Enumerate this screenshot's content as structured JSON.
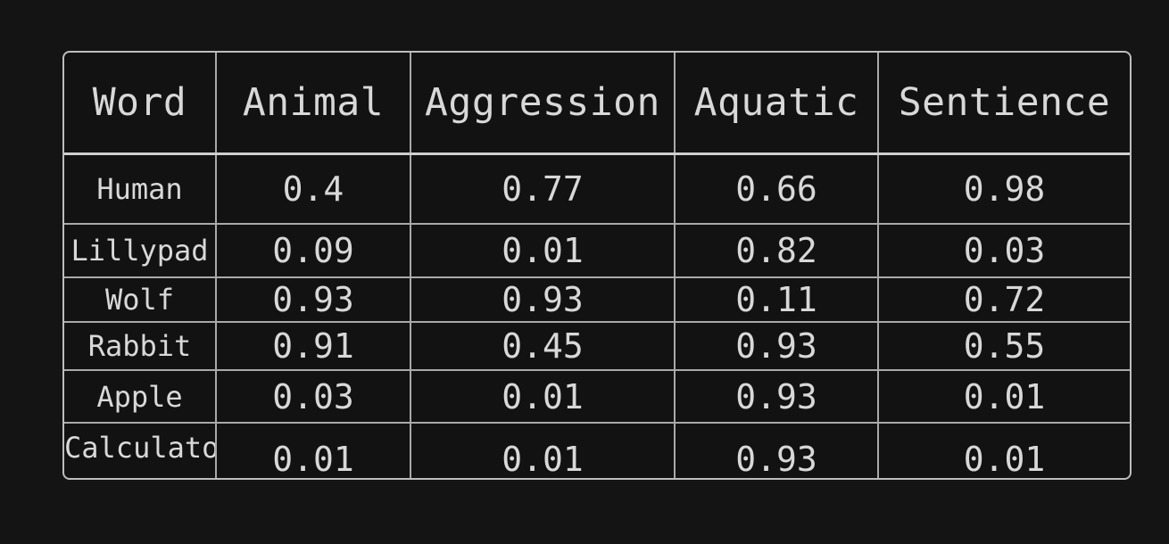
{
  "table": {
    "headers": [
      "Word",
      "Animal",
      "Aggression",
      "Aquatic",
      "Sentience"
    ],
    "rows": [
      [
        "Human",
        "0.4",
        "0.77",
        "0.66",
        "0.98"
      ],
      [
        "Lillypad",
        "0.09",
        "0.01",
        "0.82",
        "0.03"
      ],
      [
        "Wolf",
        "0.93",
        "0.93",
        "0.11",
        "0.72"
      ],
      [
        "Rabbit",
        "0.91",
        "0.45",
        "0.93",
        "0.55"
      ],
      [
        "Apple",
        "0.03",
        "0.01",
        "0.93",
        "0.01"
      ],
      [
        "Calculator",
        "0.01",
        "0.01",
        "0.93",
        "0.01"
      ]
    ]
  },
  "colors": {
    "background": "#141414",
    "border": "#bdbdbd",
    "text": "#d8d8d8"
  }
}
